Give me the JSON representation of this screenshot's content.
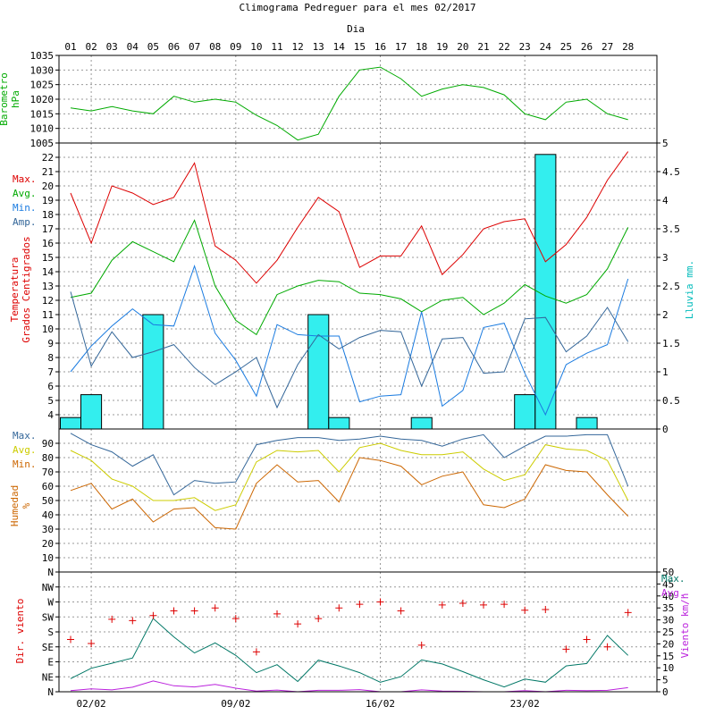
{
  "chart_data": {
    "type": "line",
    "title": "Climograma Pedreguer para el mes 02/2017",
    "x_axis_top_label": "Dia",
    "days": [
      "01",
      "02",
      "03",
      "04",
      "05",
      "06",
      "07",
      "08",
      "09",
      "10",
      "11",
      "12",
      "13",
      "14",
      "15",
      "16",
      "17",
      "18",
      "19",
      "20",
      "21",
      "22",
      "23",
      "24",
      "25",
      "26",
      "27",
      "28"
    ],
    "week_labels": [
      {
        "day": 2,
        "label": "02/02"
      },
      {
        "day": 9,
        "label": "09/02"
      },
      {
        "day": 16,
        "label": "16/02"
      },
      {
        "day": 23,
        "label": "23/02"
      }
    ],
    "colors": {
      "red": "#dd0000",
      "green": "#00aa00",
      "blue": "#1a7be0",
      "darkblue": "#336699",
      "cyan": "#33eeee",
      "yellow": "#cccc00",
      "orange": "#cc6600",
      "teal": "#007766",
      "purple": "#bb22dd"
    },
    "panels": [
      {
        "id": "barometer",
        "ylabel": [
          "Barometro",
          "hPa"
        ],
        "ylabel_color": "#00aa00",
        "ylim": [
          1005,
          1035
        ],
        "ticks": [
          1005,
          1010,
          1015,
          1020,
          1025,
          1030,
          1035
        ],
        "series": [
          {
            "color": "#00aa00",
            "values": [
              1017,
              1016,
              1017.5,
              1016,
              1015,
              1021,
              1019,
              1020,
              1019,
              1014.5,
              1011,
              1006,
              1008,
              1021,
              1030,
              1031,
              1027,
              1021,
              1023.5,
              1025,
              1024,
              1021.5,
              1015,
              1013,
              1019,
              1020,
              1015,
              1013
            ]
          }
        ]
      },
      {
        "id": "temperature",
        "ylabel": [
          "Temperatura",
          "Grados Centigrados"
        ],
        "ylabel_color": "#dd0000",
        "ylim": [
          3,
          23
        ],
        "ticks": [
          4,
          5,
          6,
          7,
          8,
          9,
          10,
          11,
          12,
          13,
          14,
          15,
          16,
          17,
          18,
          19,
          20,
          21,
          22
        ],
        "right_ylabel": "Lluvia mm.",
        "right_ylabel_color": "#00bbbb",
        "right_ylim": [
          0,
          5
        ],
        "right_ticks": [
          "0",
          "0.5",
          "1",
          "1.5",
          "2",
          "2.5",
          "3",
          "3.5",
          "4",
          "4.5",
          "5"
        ],
        "legend": [
          {
            "name": "Max.",
            "color": "#dd0000"
          },
          {
            "name": "Avg.",
            "color": "#00aa00"
          },
          {
            "name": "Min.",
            "color": "#1a7be0"
          },
          {
            "name": "Amp.",
            "color": "#336699"
          }
        ],
        "series": [
          {
            "name": "Max.",
            "color": "#dd0000",
            "values": [
              19.5,
              16,
              20,
              19.5,
              18.7,
              19.2,
              21.6,
              15.8,
              14.8,
              13.2,
              14.8,
              17.1,
              19.2,
              18.2,
              14.3,
              15.1,
              15.1,
              17.2,
              13.8,
              15.2,
              17,
              17.5,
              17.7,
              14.7,
              15.9,
              17.8,
              20.4,
              22.4
            ]
          },
          {
            "name": "Avg.",
            "color": "#00aa00",
            "values": [
              12.2,
              12.5,
              14.8,
              16.1,
              15.4,
              14.7,
              17.6,
              13,
              10.6,
              9.6,
              12.4,
              13,
              13.4,
              13.3,
              12.5,
              12.4,
              12.1,
              11.2,
              12,
              12.2,
              11,
              11.8,
              13.1,
              12.3,
              11.8,
              12.4,
              14.2,
              17.1
            ]
          },
          {
            "name": "Min.",
            "color": "#1a7be0",
            "values": [
              7,
              8.8,
              10.2,
              11.4,
              10.3,
              10.2,
              14.4,
              9.7,
              7.8,
              5.3,
              10.3,
              9.6,
              9.5,
              9.5,
              4.9,
              5.3,
              5.4,
              11.2,
              4.6,
              5.7,
              10.1,
              10.4,
              6.9,
              4,
              7.5,
              8.3,
              8.9,
              13.5
            ]
          },
          {
            "name": "Amp.",
            "color": "#336699",
            "values": [
              12.6,
              7.4,
              9.8,
              8,
              8.4,
              8.9,
              7.3,
              6.1,
              7,
              8,
              4.5,
              7.5,
              9.6,
              8.6,
              9.4,
              9.9,
              9.8,
              6,
              9.3,
              9.4,
              6.9,
              7,
              10.7,
              10.8,
              8.4,
              9.5,
              11.5,
              9.1
            ]
          }
        ],
        "rain_bars": {
          "name": "Lluvia mm.",
          "color": "#33eeee",
          "values": [
            0.2,
            0.6,
            0,
            0,
            2,
            0,
            0,
            0,
            0,
            0,
            0,
            0,
            2,
            0.2,
            0,
            0,
            0,
            0.2,
            0,
            0,
            0,
            0,
            0.6,
            4.8,
            0,
            0.2,
            0,
            0
          ]
        }
      },
      {
        "id": "humidity",
        "ylabel": [
          "Humedad",
          "%"
        ],
        "ylabel_color": "#cc6600",
        "ylim": [
          0,
          100
        ],
        "ticks": [
          10,
          20,
          30,
          40,
          50,
          60,
          70,
          80,
          90
        ],
        "legend": [
          {
            "name": "Max.",
            "color": "#336699"
          },
          {
            "name": "Avg.",
            "color": "#cccc00"
          },
          {
            "name": "Min.",
            "color": "#cc6600"
          }
        ],
        "series": [
          {
            "name": "Max.",
            "color": "#336699",
            "values": [
              97,
              89,
              84,
              74,
              82,
              54,
              64,
              62,
              63,
              89,
              92,
              94,
              94,
              92,
              93,
              95,
              93,
              92,
              88,
              93,
              96,
              80,
              88,
              95,
              95,
              96,
              96,
              60
            ]
          },
          {
            "name": "Avg.",
            "color": "#cccc00",
            "values": [
              85,
              78,
              65,
              60,
              50,
              50,
              52,
              43,
              47,
              77,
              85,
              84,
              85,
              70,
              87,
              90,
              85,
              82,
              82,
              84,
              72,
              64,
              68,
              89,
              86,
              85,
              78,
              50
            ]
          },
          {
            "name": "Min.",
            "color": "#cc6600",
            "values": [
              57,
              62,
              44,
              51,
              35,
              44,
              45,
              31,
              30,
              62,
              75,
              63,
              64,
              49,
              80,
              78,
              74,
              61,
              67,
              70,
              47,
              45,
              51,
              75,
              71,
              70,
              54,
              39
            ]
          }
        ]
      },
      {
        "id": "wind",
        "ylabel": [
          "Dir. viento"
        ],
        "ylabel_color": "#dd0000",
        "ylim": [
          0,
          360
        ],
        "ticks": [
          "N",
          "NE",
          "E",
          "SE",
          "S",
          "SW",
          "W",
          "NW",
          "N"
        ],
        "right_ylabel": "Viento km/h",
        "right_ylabel_color": "#bb22dd",
        "right_ylim": [
          0,
          50
        ],
        "right_ticks": [
          "0",
          "5",
          "10",
          "15",
          "20",
          "25",
          "30",
          "35",
          "40",
          "45",
          "50"
        ],
        "legend": [
          {
            "name": "Max.",
            "color": "#007766"
          },
          {
            "name": "Avg.",
            "color": "#bb22dd"
          }
        ],
        "direction_marks": {
          "color": "#dd0000",
          "values": [
            157,
            145,
            218,
            214,
            229,
            243,
            243,
            252,
            220,
            120,
            234,
            204,
            220,
            252,
            263,
            270,
            243,
            140,
            261,
            266,
            261,
            263,
            245,
            247,
            128,
            157,
            135,
            238
          ]
        },
        "series": [
          {
            "name": "Max.",
            "color": "#007766",
            "values": [
              5.5,
              9.8,
              11.9,
              14.1,
              30.6,
              22.9,
              16.2,
              20.4,
              15.2,
              8,
              11.3,
              4.3,
              13.2,
              10.8,
              8,
              4,
              6.3,
              13.3,
              11.6,
              8.4,
              5,
              2,
              5.3,
              4,
              10.8,
              11.8,
              23.5,
              15.2
            ]
          },
          {
            "name": "Avg.",
            "color": "#bb22dd",
            "values": [
              0.5,
              1.2,
              0.8,
              1.9,
              4.5,
              2.5,
              2,
              3.1,
              1.5,
              0.3,
              0.7,
              0,
              0.6,
              0.6,
              0.9,
              0,
              0,
              0.8,
              0.3,
              0.2,
              0,
              0,
              0.5,
              0,
              0.6,
              0.5,
              0.6,
              1.7
            ]
          }
        ]
      }
    ]
  }
}
